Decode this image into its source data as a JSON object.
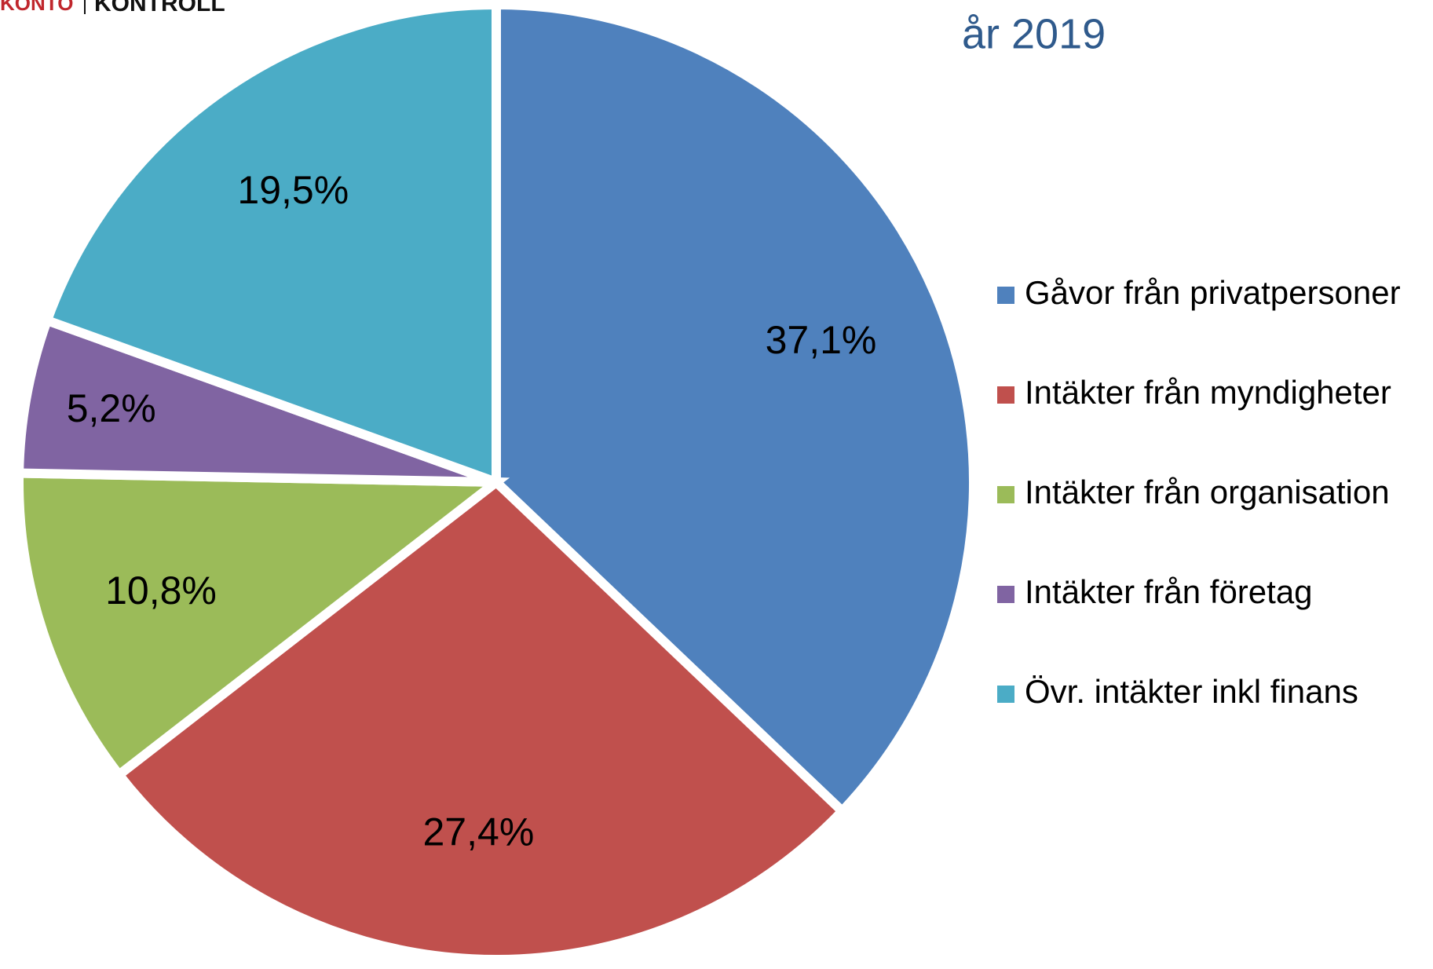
{
  "chart_data": {
    "type": "pie",
    "logo": [
      "KONTO",
      "KONTROLL"
    ],
    "title": "år 2019",
    "categories": [
      "Gåvor från privatpersoner",
      "Intäkter från myndigheter",
      "Intäkter från organisation",
      "Intäkter från företag",
      "Övr. intäkter inkl finans"
    ],
    "values": [
      37.1,
      27.4,
      10.8,
      5.2,
      19.5
    ],
    "value_labels": [
      "37,1%",
      "27,4%",
      "10,8%",
      "5,2%",
      "19,5%"
    ],
    "colors": [
      "#4f81bd",
      "#c0504d",
      "#9bbb59",
      "#8064a2",
      "#4bacc6"
    ],
    "legend": "right"
  }
}
